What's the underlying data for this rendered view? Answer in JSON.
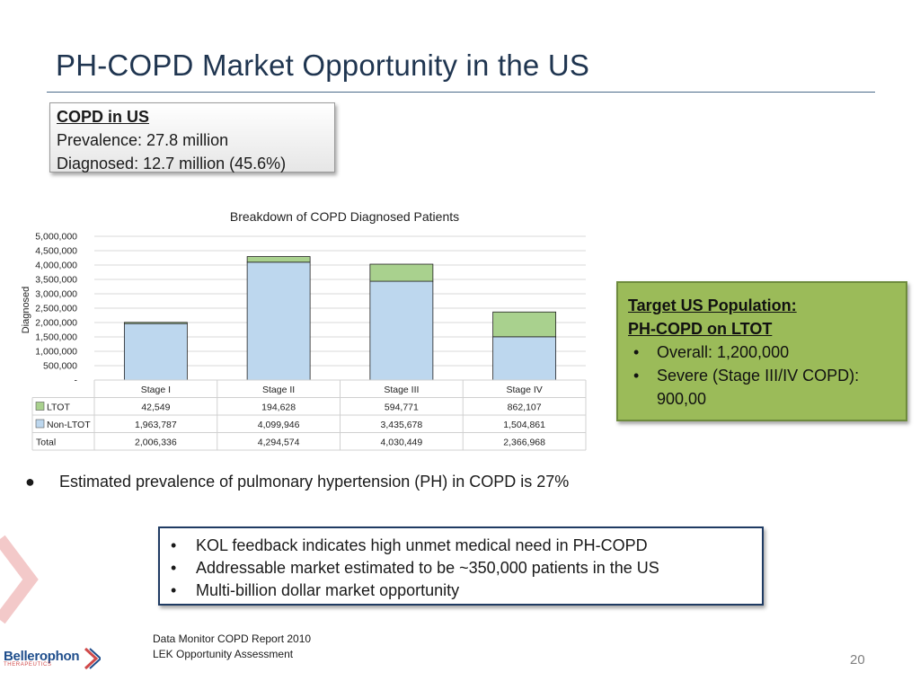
{
  "title": "PH-COPD Market Opportunity in the US",
  "copd_box": {
    "heading": "COPD in US",
    "prevalence": "Prevalence: 27.8 million",
    "diagnosed": "Diagnosed: 12.7 million (45.6%)"
  },
  "chart_data": {
    "type": "bar",
    "stacked": true,
    "title": "Breakdown of COPD Diagnosed Patients",
    "ylabel": "Diagnosed",
    "ylim": [
      0,
      5000000
    ],
    "yticks": [
      "-",
      "500,000",
      "1,000,000",
      "1,500,000",
      "2,000,000",
      "2,500,000",
      "3,000,000",
      "3,500,000",
      "4,000,000",
      "4,500,000",
      "5,000,000"
    ],
    "categories": [
      "Stage I",
      "Stage II",
      "Stage III",
      "Stage IV"
    ],
    "series": [
      {
        "name": "LTOT",
        "values": [
          42549,
          194628,
          594771,
          862107
        ],
        "labels": [
          "42,549",
          "194,628",
          "594,771",
          "862,107"
        ],
        "color": "#a9d18e"
      },
      {
        "name": "Non-LTOT",
        "values": [
          1963787,
          4099946,
          3435678,
          1504861
        ],
        "labels": [
          "1,963,787",
          "4,099,946",
          "3,435,678",
          "1,504,861"
        ],
        "color": "#bdd7ee"
      }
    ],
    "total": {
      "name": "Total",
      "labels": [
        "2,006,336",
        "4,294,574",
        "4,030,449",
        "2,366,968"
      ]
    },
    "grid": true,
    "data_table": true
  },
  "target_box": {
    "heading1": "Target US Population:",
    "heading2": "PH-COPD on LTOT",
    "items": [
      "Overall: 1,200,000",
      "Severe (Stage III/IV COPD): 900,00"
    ]
  },
  "prevalence_bullet": {
    "bullet": "●",
    "text": "Estimated prevalence of pulmonary hypertension (PH) in COPD is 27%"
  },
  "kol_box": {
    "items": [
      "KOL feedback indicates high unmet medical need in PH-COPD",
      "Addressable market estimated to be ~350,000 patients in the US",
      "Multi-billion dollar market opportunity"
    ]
  },
  "sources": [
    "Data Monitor COPD Report 2010",
    "LEK Opportunity Assessment"
  ],
  "page_number": "20",
  "logo": {
    "name": "Bellerophon",
    "tagline": "THERAPEUTICS"
  }
}
